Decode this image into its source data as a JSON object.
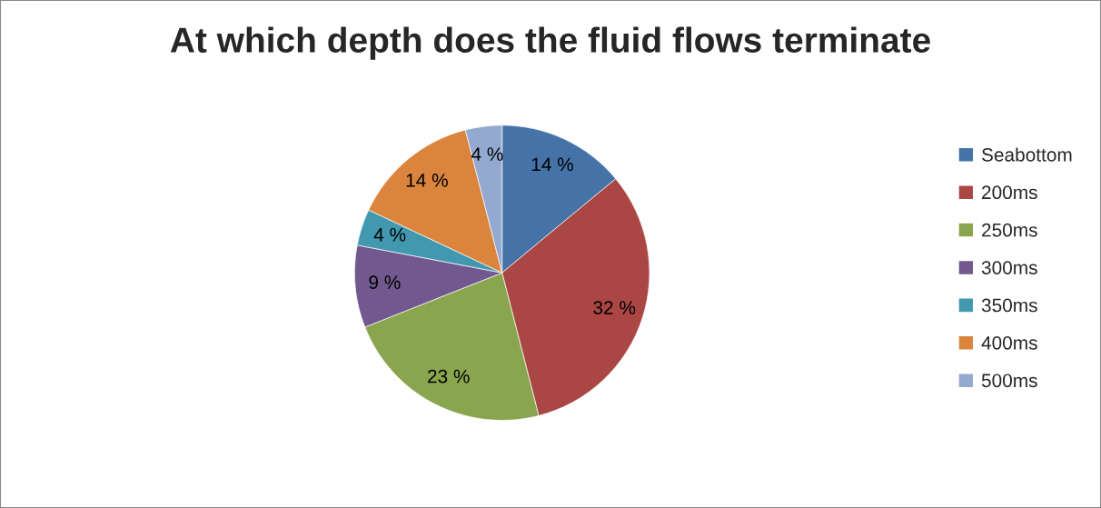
{
  "chart_data": {
    "type": "pie",
    "title": "At which depth does the fluid flows terminate",
    "categories": [
      "Seabottom",
      "200ms",
      "250ms",
      "300ms",
      "350ms",
      "400ms",
      "500ms"
    ],
    "values": [
      14,
      32,
      23,
      9,
      4,
      14,
      4
    ],
    "value_labels": [
      "14 %",
      "32 %",
      "23 %",
      "9 %",
      "4 %",
      "14 %",
      "4 %"
    ],
    "colors": [
      "#4572a7",
      "#aa4643",
      "#89a54e",
      "#71588f",
      "#4198af",
      "#db843d",
      "#93a9cf"
    ],
    "legend": "right"
  }
}
